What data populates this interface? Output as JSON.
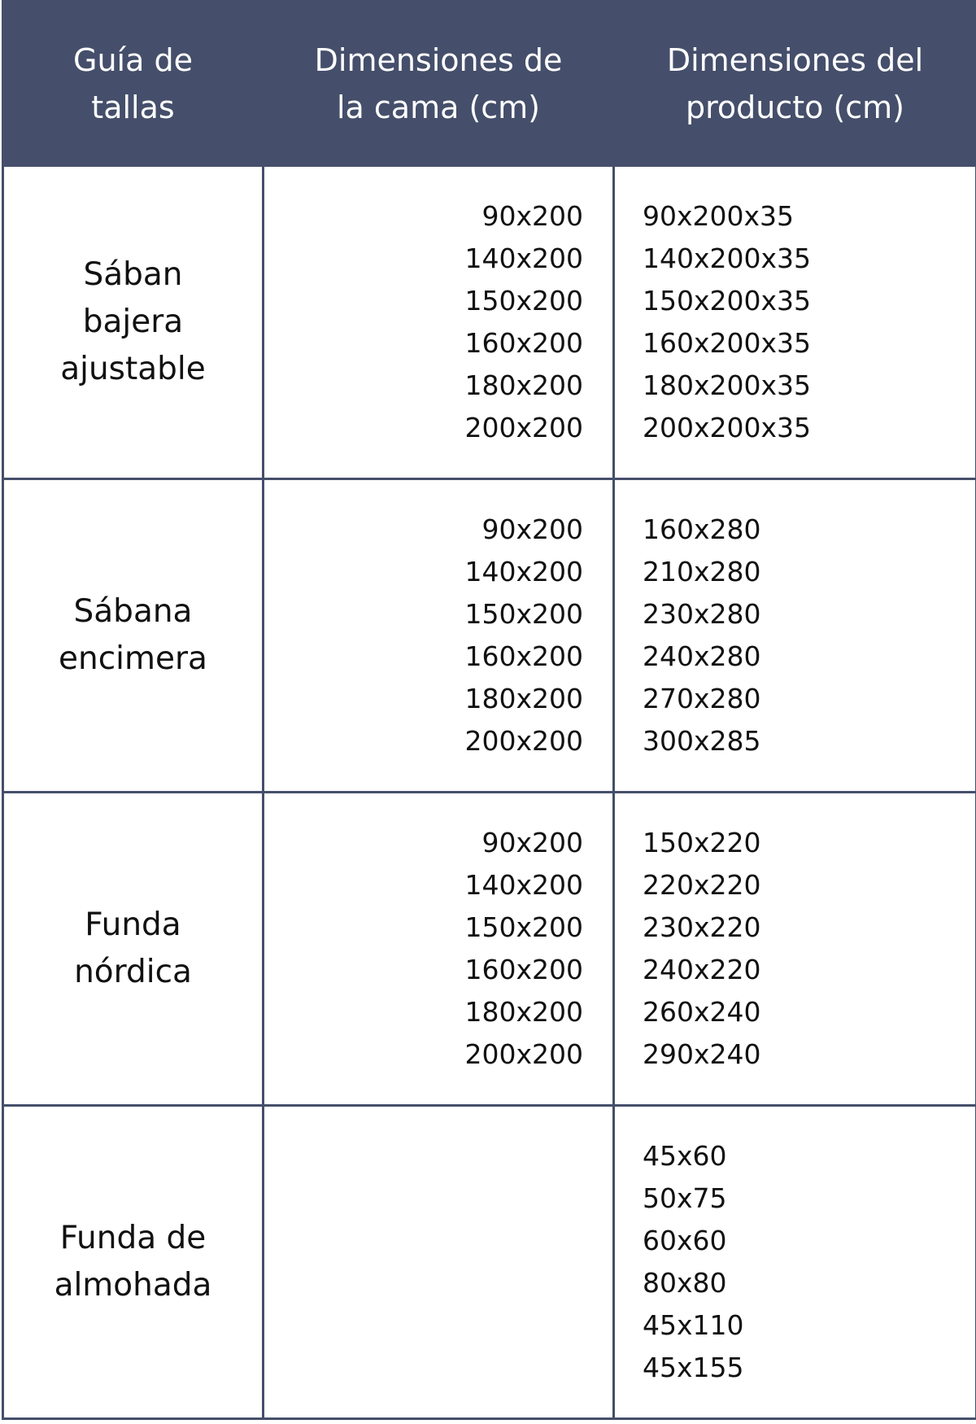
{
  "colors": {
    "header_bg": "#454f6b",
    "header_text": "#ffffff",
    "border": "#454f6b"
  },
  "header": [
    "Guía de tallas",
    "Dimensiones de la cama (cm)",
    "Dimensiones del producto (cm)"
  ],
  "header_lines": [
    [
      "Guía de",
      "tallas"
    ],
    [
      "Dimensiones de",
      "la cama (cm)"
    ],
    [
      "Dimensiones del",
      "producto (cm)"
    ]
  ],
  "rows": [
    {
      "label_lines": [
        "Sában",
        "bajera",
        "ajustable"
      ],
      "bed": [
        "90x200",
        "140x200",
        "150x200",
        "160x200",
        "180x200",
        "200x200"
      ],
      "product": [
        "90x200x35",
        "140x200x35",
        "150x200x35",
        "160x200x35",
        "180x200x35",
        "200x200x35"
      ]
    },
    {
      "label_lines": [
        "Sábana",
        "encimera"
      ],
      "bed": [
        "90x200",
        "140x200",
        "150x200",
        "160x200",
        "180x200",
        "200x200"
      ],
      "product": [
        "160x280",
        "210x280",
        "230x280",
        "240x280",
        "270x280",
        "300x285"
      ]
    },
    {
      "label_lines": [
        "Funda",
        "nórdica"
      ],
      "bed": [
        "90x200",
        "140x200",
        "150x200",
        "160x200",
        "180x200",
        "200x200"
      ],
      "product": [
        "150x220",
        "220x220",
        "230x220",
        "240x220",
        "260x240",
        "290x240"
      ]
    },
    {
      "label_lines": [
        "Funda de",
        "almohada"
      ],
      "bed": [],
      "product": [
        "45x60",
        "50x75",
        "60x60",
        "80x80",
        "45x110",
        "45x155"
      ]
    }
  ]
}
